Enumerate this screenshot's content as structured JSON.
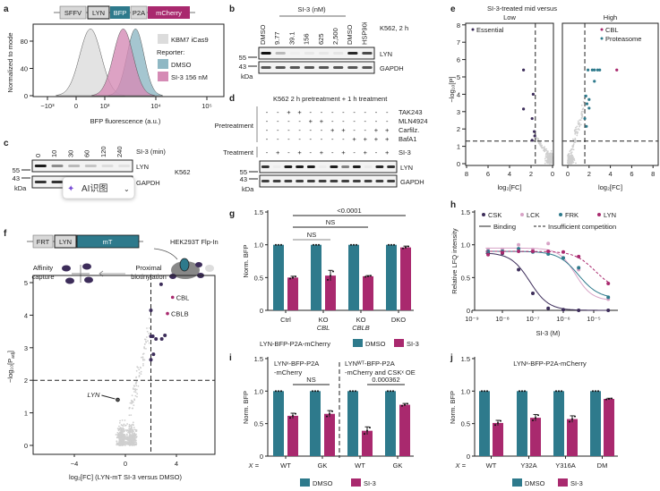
{
  "colors": {
    "teal": "#2e7a8c",
    "magenta": "#a9296e",
    "dark_purple": "#3d2d5a",
    "gray": "#cfcfcf",
    "light_pink": "#d7a3c6",
    "pink_fill": "#d58bb5",
    "teal_fill": "#8fb8c4"
  },
  "panel_letters": {
    "a": "a",
    "b": "b",
    "c": "c",
    "d": "d",
    "e": "e",
    "f": "f",
    "g": "g",
    "h": "h",
    "i": "i",
    "j": "j"
  },
  "a": {
    "construct": [
      "SFFV",
      "LYN",
      "BFP",
      "P2A",
      "mCherry"
    ],
    "ylabel": "Normalized to mode",
    "xlabel": "BFP fluorescence (a.u.)",
    "legend": {
      "kbm7": "KBM7 iCas9",
      "reporter": "Reporter:",
      "dmso": "DMSO",
      "si3": "SI-3 156 nM"
    }
  },
  "b": {
    "header": "SI-3 (nM)",
    "condition": "K562, 2 h",
    "lanes": [
      "DMSO",
      "9.77",
      "39.1",
      "156",
      "625",
      "2,500",
      "DMSO",
      "HSP90i"
    ],
    "lyn_bands": [
      1.0,
      0.25,
      0.02,
      0.05,
      0.05,
      0.06,
      0.9,
      0.75
    ],
    "gapdh_bands": [
      0.7,
      0.7,
      0.7,
      0.7,
      0.7,
      0.7,
      0.7,
      0.7
    ],
    "blot_labels": [
      "LYN",
      "GAPDH"
    ],
    "markers": [
      "55",
      "43"
    ],
    "kda": "kDa"
  },
  "c": {
    "header": "SI-3 (min)",
    "cell_line": "K562",
    "lanes": [
      "0",
      "10",
      "30",
      "60",
      "120",
      "240"
    ],
    "lyn_bands": [
      0.95,
      0.45,
      0.25,
      0.2,
      0.1,
      0.08
    ],
    "gapdh_bands": [
      0.85,
      0.85,
      0.85,
      0.85,
      0.85,
      0.85
    ],
    "blot_labels": [
      "LYN",
      "GAPDH"
    ],
    "markers": [
      "55",
      "43"
    ],
    "kda": "kDa"
  },
  "overlay": {
    "label": "AI识图",
    "sparkle_icon": "sparkle-icon",
    "chevron_icon": "chevron-down-icon"
  },
  "d": {
    "title": "K562 2 h pretreatment + 1 h treatment",
    "pretreatment_label": "Pretreatment",
    "treatment_label": "Treatment",
    "rows": [
      {
        "label": "TAK243",
        "signs": [
          "-",
          "-",
          "+",
          "+",
          "-",
          "-",
          "-",
          "-",
          "-",
          "-",
          "-",
          "-"
        ]
      },
      {
        "label": "MLN4924",
        "signs": [
          "-",
          "-",
          "-",
          "-",
          "+",
          "+",
          "-",
          "-",
          "-",
          "-",
          "-",
          "-"
        ]
      },
      {
        "label": "Carfilz.",
        "signs": [
          "-",
          "-",
          "-",
          "-",
          "-",
          "-",
          "+",
          "+",
          "-",
          "-",
          "+",
          "+"
        ]
      },
      {
        "label": "BafA1",
        "signs": [
          "-",
          "-",
          "-",
          "-",
          "-",
          "-",
          "-",
          "-",
          "+",
          "+",
          "+",
          "+"
        ]
      }
    ],
    "treatment_row": {
      "label": "SI-3",
      "signs": [
        "-",
        "+",
        "-",
        "+",
        "-",
        "+",
        "-",
        "+",
        "-",
        "+",
        "-",
        "+"
      ]
    },
    "lyn_bands": [
      0.85,
      0.03,
      0.95,
      0.95,
      0.95,
      0.03,
      0.95,
      0.5,
      0.95,
      0.04,
      0.9,
      0.85
    ],
    "gapdh_bands": [
      0.8,
      0.8,
      0.8,
      0.8,
      0.8,
      0.8,
      0.8,
      0.8,
      0.8,
      0.8,
      0.8,
      0.8
    ],
    "blot_labels": [
      "LYN",
      "GAPDH"
    ],
    "markers": [
      "55",
      "43"
    ],
    "kda": "kDa"
  },
  "f": {
    "construct": [
      "FRT",
      "LYN",
      "mT"
    ],
    "cell_line": "HEK293T Flp-In",
    "step1": [
      "Affinity",
      "capture"
    ],
    "step2": [
      "Proximal",
      "biotinylation"
    ]
  },
  "chart_data": [
    {
      "id": "a",
      "type": "area",
      "xlabel": "BFP fluorescence (a.u.)",
      "ylabel": "Normalized to mode",
      "xticks": [
        {
          "v": -1000,
          "label": "−10³"
        },
        {
          "v": 0,
          "label": "0"
        },
        {
          "v": 1000,
          "label": "10³"
        },
        {
          "v": 10000,
          "label": "10⁴"
        },
        {
          "v": 100000,
          "label": "10⁵"
        }
      ],
      "yticks": [
        {
          "v": 0,
          "label": "0"
        },
        {
          "v": 40,
          "label": "40"
        },
        {
          "v": 80,
          "label": "80"
        }
      ],
      "ylim": [
        0,
        100
      ],
      "series": [
        {
          "name": "KBM7 iCas9",
          "mode": 500,
          "color": "#dcdcdc"
        },
        {
          "name": "DMSO",
          "mode": 4000,
          "color": "#8fb8c4"
        },
        {
          "name": "SI-3 156 nM",
          "mode": 2300,
          "color": "#d58bb5"
        }
      ],
      "legend": "right"
    },
    {
      "id": "e",
      "type": "scatter",
      "title": "SI-3-treated mid versus",
      "ylabel": "−log₁₀[P]",
      "xlabel": "log₂[FC]",
      "ylim": [
        0,
        8
      ],
      "xlim": [
        0,
        8
      ],
      "yticks": [
        "0",
        "1",
        "2",
        "3",
        "4",
        "5",
        "6",
        "7",
        "8"
      ],
      "xticks_left": [
        "8",
        "6",
        "4",
        "2",
        "0"
      ],
      "xticks_right": [
        "0",
        "2",
        "4",
        "6",
        "8"
      ],
      "thresholds": {
        "log2fc": 1.6,
        "neglog10p": 1.3
      },
      "panels": [
        {
          "name": "Low",
          "legend": [
            {
              "label": "Essential",
              "color": "#3d2d5a"
            }
          ],
          "points": [
            {
              "fc": 2.7,
              "p": 5.4,
              "cls": "Essential"
            },
            {
              "fc": 1.8,
              "p": 4.0,
              "cls": "Essential"
            },
            {
              "fc": 2.7,
              "p": 3.15,
              "cls": "Essential"
            },
            {
              "fc": 1.9,
              "p": 2.6,
              "cls": "Essential"
            },
            {
              "fc": 1.7,
              "p": 1.85,
              "cls": "Essential"
            },
            {
              "fc": 1.65,
              "p": 1.6,
              "cls": "Essential"
            },
            {
              "fc": 1.9,
              "p": 1.35,
              "cls": "Essential"
            }
          ]
        },
        {
          "name": "High",
          "legend": [
            {
              "label": "CBL",
              "color": "#a9296e"
            },
            {
              "label": "Proteasome",
              "color": "#2e7a8c"
            }
          ],
          "points": [
            {
              "fc": 4.6,
              "p": 5.4,
              "cls": "CBL"
            },
            {
              "fc": 1.9,
              "p": 5.4,
              "cls": "Proteasome"
            },
            {
              "fc": 2.3,
              "p": 5.4,
              "cls": "Proteasome"
            },
            {
              "fc": 2.5,
              "p": 5.4,
              "cls": "Proteasome"
            },
            {
              "fc": 2.8,
              "p": 5.4,
              "cls": "Proteasome"
            },
            {
              "fc": 3.0,
              "p": 5.4,
              "cls": "Proteasome"
            },
            {
              "fc": 2.5,
              "p": 4.75,
              "cls": "Proteasome"
            },
            {
              "fc": 1.7,
              "p": 3.9,
              "cls": "Proteasome"
            },
            {
              "fc": 2.0,
              "p": 3.7,
              "cls": "Proteasome"
            },
            {
              "fc": 1.8,
              "p": 3.45,
              "cls": "Proteasome"
            },
            {
              "fc": 2.0,
              "p": 3.2,
              "cls": "Proteasome"
            },
            {
              "fc": 1.6,
              "p": 2.6,
              "cls": "Proteasome"
            },
            {
              "fc": 1.75,
              "p": 2.15,
              "cls": "Proteasome"
            }
          ]
        }
      ]
    },
    {
      "id": "f",
      "type": "scatter",
      "ylabel_main": "−log₁₀[P",
      "ylabel_sub": "adj",
      "ylabel_end": "]",
      "xlabel_main": "log₂[FC] (LYN-mT SI-3 versus DMSO)",
      "xlim": [
        -7,
        7
      ],
      "ylim": [
        0,
        5.2
      ],
      "xticks": [
        {
          "v": -4,
          "label": "−4"
        },
        {
          "v": 0,
          "label": "0"
        },
        {
          "v": 4,
          "label": "4"
        }
      ],
      "yticks": [
        {
          "v": 0,
          "label": "0"
        },
        {
          "v": 1,
          "label": "1"
        },
        {
          "v": 2,
          "label": "2"
        },
        {
          "v": 3,
          "label": "3"
        },
        {
          "v": 4,
          "label": "4"
        },
        {
          "v": 5,
          "label": "5"
        }
      ],
      "thresholds": {
        "log2fc": 2,
        "neglog10padj": 2
      },
      "labeled": [
        {
          "label": "CBL",
          "fc": 3.7,
          "p": 4.55,
          "color": "#a9296e"
        },
        {
          "label": "CBLB",
          "fc": 3.3,
          "p": 4.05,
          "color": "#a9296e"
        },
        {
          "label": "LYN",
          "fc": -0.6,
          "p": 1.4,
          "color": "#444444"
        }
      ],
      "hits": [
        {
          "fc": 2.8,
          "p": 4.95
        },
        {
          "fc": 2.0,
          "p": 4.15
        },
        {
          "fc": 2.0,
          "p": 3.35
        },
        {
          "fc": 2.15,
          "p": 3.35
        },
        {
          "fc": 2.4,
          "p": 3.27
        },
        {
          "fc": 2.85,
          "p": 3.27
        },
        {
          "fc": 3.1,
          "p": 3.38
        },
        {
          "fc": 2.2,
          "p": 2.8
        },
        {
          "fc": 2.0,
          "p": 2.63
        }
      ]
    },
    {
      "id": "g",
      "type": "bar",
      "ylabel": "Norm. BFP",
      "ylim": [
        0,
        1.5
      ],
      "yticks": [
        "0",
        "0.5",
        "1.0",
        "1.5"
      ],
      "categories": [
        [
          "Ctrl",
          ""
        ],
        [
          "KO",
          "CBL"
        ],
        [
          "KO",
          "CBLB"
        ],
        [
          "DKO",
          ""
        ]
      ],
      "series": [
        {
          "name": "DMSO",
          "values": [
            1,
            1,
            1,
            1
          ]
        },
        {
          "name": "SI-3",
          "values": [
            0.5,
            0.53,
            0.52,
            0.96
          ]
        }
      ],
      "errors": [
        0.02,
        0.08,
        0.01,
        0.02
      ],
      "comparisons": [
        {
          "label": "<0.0001",
          "from": 0,
          "to": 3
        },
        {
          "label": "NS",
          "from": 0,
          "to": 2
        },
        {
          "label": "NS",
          "from": 0,
          "to": 1
        }
      ],
      "legend_title": "LYN-BFP-P2A-mCherry",
      "legend": [
        "DMSO",
        "SI-3"
      ]
    },
    {
      "id": "h",
      "type": "line",
      "xlabel": "SI-3 (M)",
      "ylabel": "Relative LFQ intensity",
      "xscale": "log",
      "xlim": [
        1e-09,
        5e-05
      ],
      "ylim": [
        0,
        1.5
      ],
      "xticks": [
        "10⁻⁹",
        "10⁻⁸",
        "10⁻⁷",
        "10⁻⁶",
        "10⁻⁵"
      ],
      "yticks": [
        "0",
        "0.5",
        "1.0",
        "1.5"
      ],
      "x": [
        3.4e-09,
        1e-08,
        3.4e-08,
        1e-07,
        3.2e-07,
        1e-06,
        3.2e-06,
        3e-05
      ],
      "series": [
        {
          "name": "CSK",
          "color": "#3d2d5a",
          "style": "Binding",
          "values": [
            0.87,
            0.87,
            0.62,
            0.26,
            0.03,
            0.01,
            0.0,
            0.0
          ]
        },
        {
          "name": "LCK",
          "color": "#d7a3c6",
          "style": "Binding",
          "values": [
            0.93,
            0.93,
            1.0,
            0.93,
            1.02,
            0.8,
            0.62,
            0.17
          ]
        },
        {
          "name": "FRK",
          "color": "#2e7a8c",
          "style": "Binding",
          "values": [
            0.9,
            0.9,
            0.94,
            0.89,
            0.86,
            0.8,
            0.65,
            0.2
          ]
        },
        {
          "name": "LYN",
          "color": "#a9296e",
          "style": "Insufficient competition",
          "values": [
            0.85,
            0.88,
            0.9,
            0.9,
            0.9,
            0.89,
            0.82,
            0.41
          ]
        }
      ],
      "line_legend": [
        "Binding",
        "Insufficient competition"
      ],
      "legend": "top"
    },
    {
      "id": "i",
      "type": "bar",
      "ylabel": "Norm. BFP",
      "ylim": [
        0,
        1.5
      ],
      "yticks": [
        "0",
        "0.5",
        "1.0",
        "1.5"
      ],
      "x_prefix": "X =",
      "categories": [
        [
          "WT"
        ],
        [
          "GK"
        ],
        [
          "WT"
        ],
        [
          "GK"
        ]
      ],
      "series": [
        {
          "name": "DMSO",
          "values": [
            1,
            1,
            1,
            1
          ]
        },
        {
          "name": "SI-3",
          "values": [
            0.62,
            0.65,
            0.39,
            0.79
          ]
        }
      ],
      "errors": [
        0.04,
        0.05,
        0.06,
        0.02
      ],
      "group_titles": [
        [
          "LYNˣ-BFP-P2A",
          "-mCherry"
        ],
        [
          "LYNᵂᵀ-BFP-P2A",
          "-mCherry and CSKˣ OE"
        ]
      ],
      "comparisons": [
        {
          "label": "NS",
          "from": 0,
          "to": 1
        },
        {
          "label": "0.000362",
          "from": 2,
          "to": 3
        }
      ],
      "legend": [
        "DMSO",
        "SI-3"
      ]
    },
    {
      "id": "j",
      "type": "bar",
      "title": "LYNˣ-BFP-P2A-mCherry",
      "ylabel": "Norm. BFP",
      "ylim": [
        0,
        1.5
      ],
      "yticks": [
        "0",
        "0.5",
        "1.0",
        "1.5"
      ],
      "x_prefix": "X =",
      "categories": [
        [
          "WT"
        ],
        [
          "Y32A"
        ],
        [
          "Y316A"
        ],
        [
          "DM"
        ]
      ],
      "series": [
        {
          "name": "DMSO",
          "values": [
            1,
            1,
            1,
            1
          ]
        },
        {
          "name": "SI-3",
          "values": [
            0.51,
            0.59,
            0.57,
            0.88
          ]
        }
      ],
      "errors": [
        0.04,
        0.05,
        0.05,
        0.01
      ],
      "legend": [
        "DMSO",
        "SI-3"
      ]
    }
  ]
}
